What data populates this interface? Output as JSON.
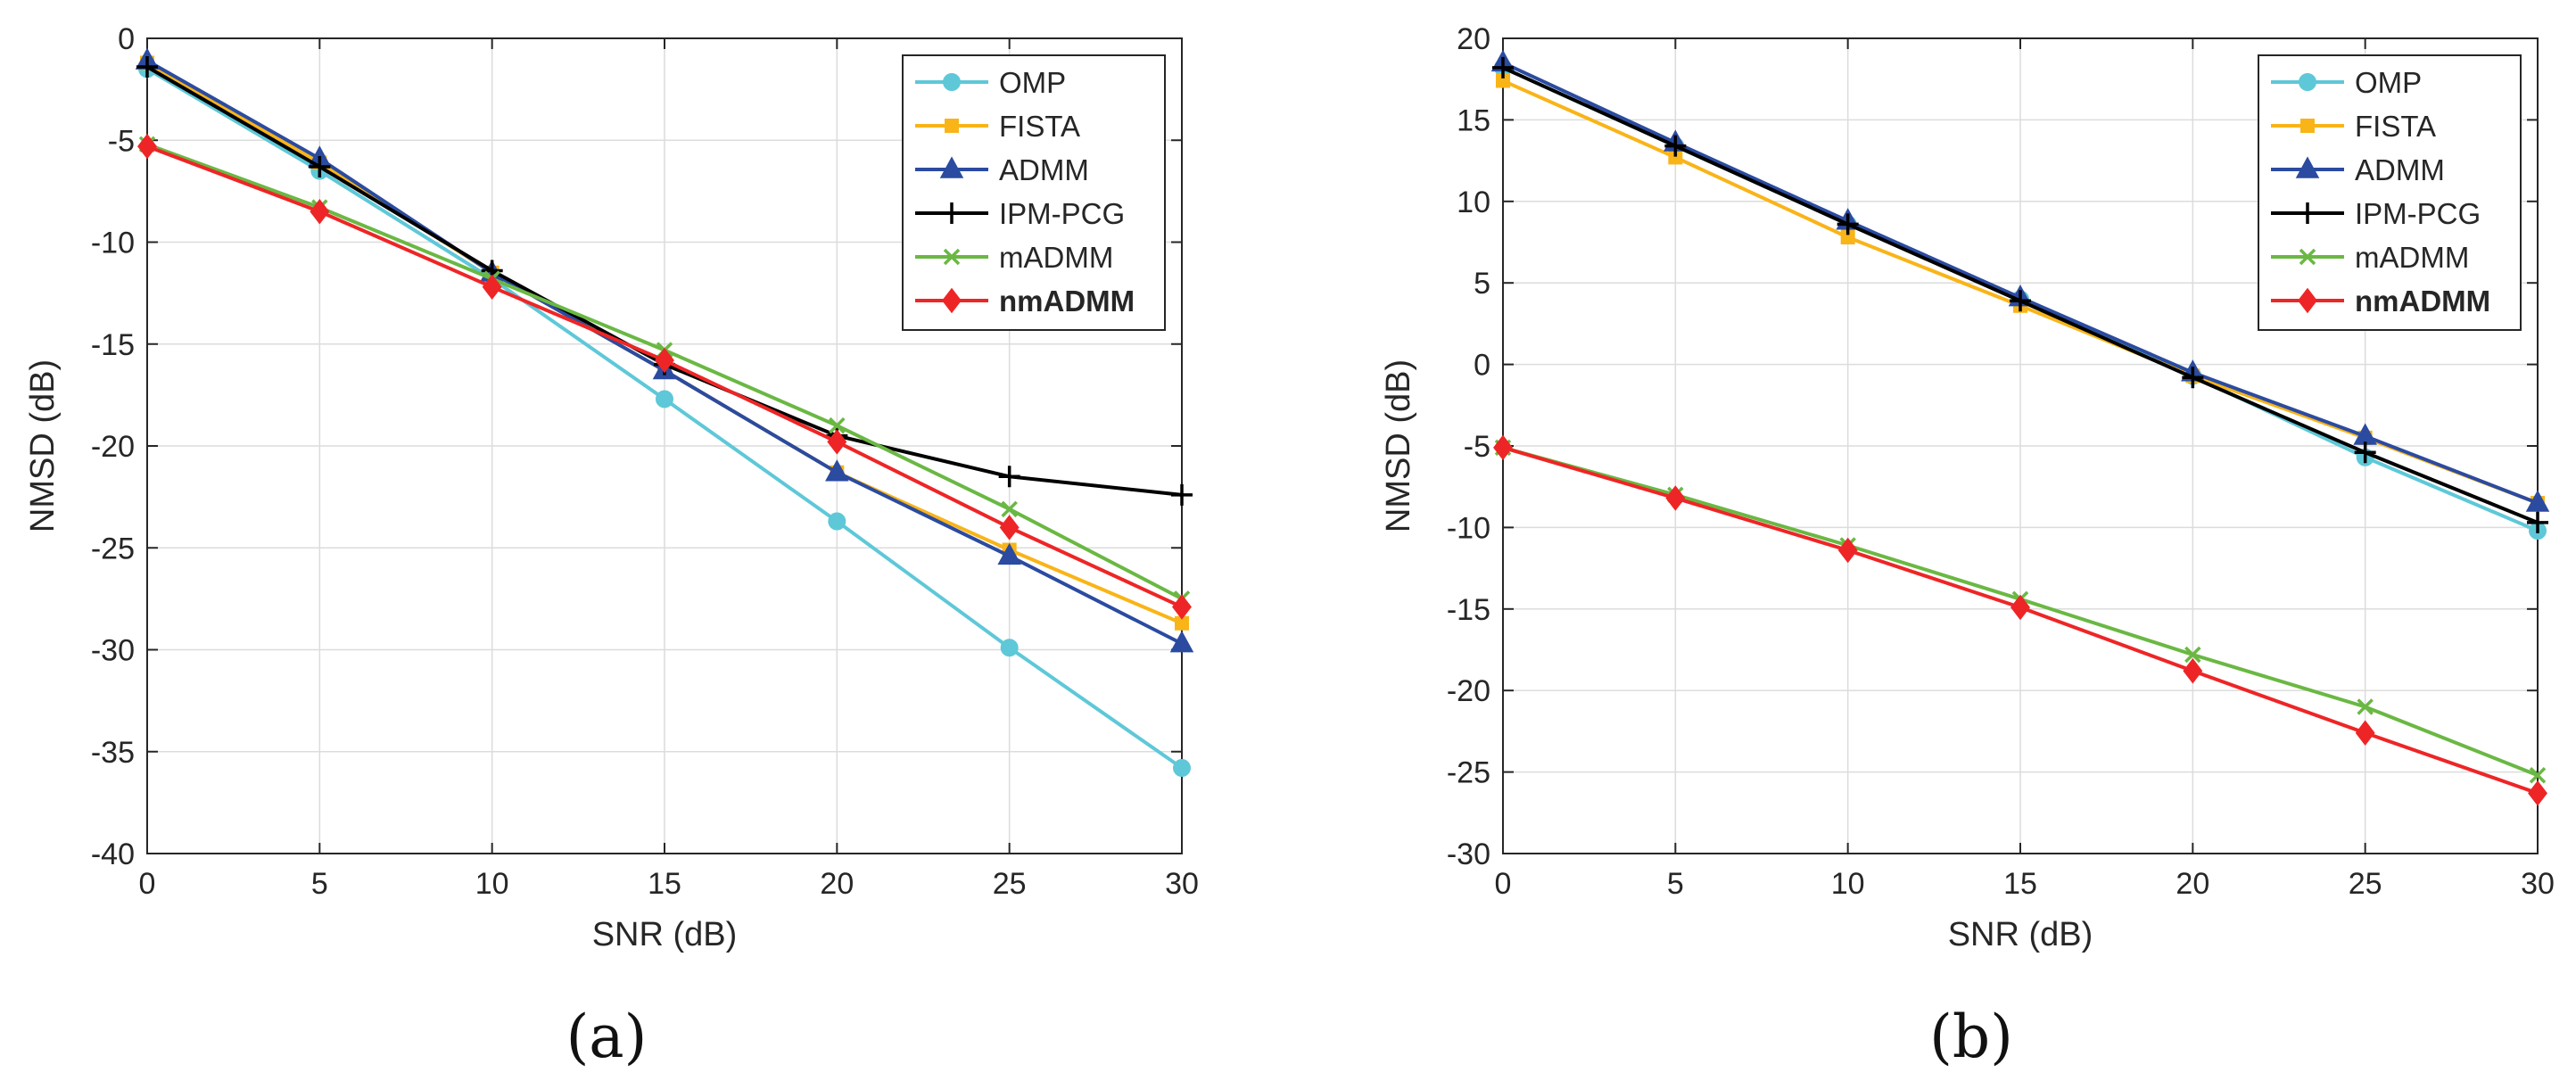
{
  "chart_data": [
    {
      "type": "line",
      "panel_label": "(a)",
      "xlabel": "SNR (dB)",
      "ylabel": "NMSD (dB)",
      "xlim": [
        0,
        30
      ],
      "ylim": [
        -40,
        0
      ],
      "xticks": [
        0,
        5,
        10,
        15,
        20,
        25,
        30
      ],
      "yticks": [
        0,
        -5,
        -10,
        -15,
        -20,
        -25,
        -30,
        -35,
        -40
      ],
      "grid": true,
      "legend_position": "top-right",
      "x": [
        0,
        5,
        10,
        15,
        20,
        25,
        30
      ],
      "series": [
        {
          "name": "OMP",
          "color": "#5ec8d8",
          "marker": "circle",
          "values": [
            -1.5,
            -6.5,
            -11.8,
            -17.7,
            -23.7,
            -29.9,
            -35.8
          ]
        },
        {
          "name": "FISTA",
          "color": "#f9b418",
          "marker": "square",
          "values": [
            -1.2,
            -6.1,
            -11.5,
            -16.3,
            -21.3,
            -25.1,
            -28.7
          ]
        },
        {
          "name": "ADMM",
          "color": "#2b4ba0",
          "marker": "triangle",
          "values": [
            -1.1,
            -5.9,
            -11.5,
            -16.3,
            -21.3,
            -25.4,
            -29.7
          ]
        },
        {
          "name": "IPM-PCG",
          "color": "#000000",
          "marker": "plus",
          "values": [
            -1.4,
            -6.3,
            -11.4,
            -16.0,
            -19.5,
            -21.5,
            -22.4
          ]
        },
        {
          "name": "mADMM",
          "color": "#6ab843",
          "marker": "x",
          "values": [
            -5.2,
            -8.3,
            -11.8,
            -15.3,
            -19.0,
            -23.1,
            -27.5
          ]
        },
        {
          "name": "nmADMM",
          "color": "#ee2526",
          "marker": "diamond",
          "bold": true,
          "values": [
            -5.3,
            -8.5,
            -12.2,
            -15.8,
            -19.8,
            -24.0,
            -27.9
          ]
        }
      ]
    },
    {
      "type": "line",
      "panel_label": "(b)",
      "xlabel": "SNR (dB)",
      "ylabel": "NMSD (dB)",
      "xlim": [
        0,
        30
      ],
      "ylim": [
        -30,
        20
      ],
      "xticks": [
        0,
        5,
        10,
        15,
        20,
        25,
        30
      ],
      "yticks": [
        20,
        15,
        10,
        5,
        0,
        -5,
        -10,
        -15,
        -20,
        -25,
        -30
      ],
      "grid": true,
      "legend_position": "top-right",
      "x": [
        0,
        5,
        10,
        15,
        20,
        25,
        30
      ],
      "series": [
        {
          "name": "OMP",
          "color": "#5ec8d8",
          "marker": "circle",
          "values": [
            18.2,
            13.4,
            8.6,
            4.0,
            -0.7,
            -5.7,
            -10.2
          ]
        },
        {
          "name": "FISTA",
          "color": "#f9b418",
          "marker": "square",
          "values": [
            17.4,
            12.7,
            7.8,
            3.6,
            -0.7,
            -4.5,
            -8.5
          ]
        },
        {
          "name": "ADMM",
          "color": "#2b4ba0",
          "marker": "triangle",
          "values": [
            18.5,
            13.6,
            8.8,
            4.1,
            -0.5,
            -4.4,
            -8.5
          ]
        },
        {
          "name": "IPM-PCG",
          "color": "#000000",
          "marker": "plus",
          "values": [
            18.2,
            13.4,
            8.6,
            3.9,
            -0.8,
            -5.4,
            -9.7
          ]
        },
        {
          "name": "mADMM",
          "color": "#6ab843",
          "marker": "x",
          "values": [
            -5.1,
            -8.0,
            -11.1,
            -14.4,
            -17.8,
            -21.0,
            -25.2
          ]
        },
        {
          "name": "nmADMM",
          "color": "#ee2526",
          "marker": "diamond",
          "bold": true,
          "values": [
            -5.1,
            -8.2,
            -11.4,
            -14.9,
            -18.8,
            -22.6,
            -26.3
          ]
        }
      ]
    }
  ]
}
